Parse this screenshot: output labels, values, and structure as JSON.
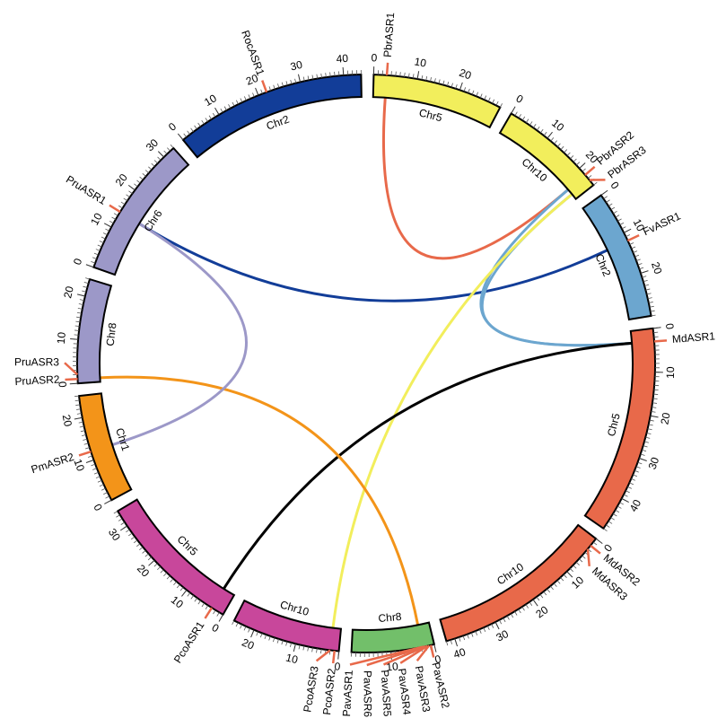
{
  "chromosomes": [
    {
      "label": "Chr5",
      "color": "#f2ee5c",
      "length": 30,
      "ticks": [
        0,
        10,
        20
      ]
    },
    {
      "label": "Chr10",
      "color": "#f2ee5c",
      "length": 25,
      "ticks": [
        0,
        10,
        20
      ]
    },
    {
      "label": "Chr2",
      "color": "#6ca6cf",
      "length": 30,
      "ticks": [
        0,
        10,
        20
      ]
    },
    {
      "label": "Chr5",
      "color": "#e8694a",
      "length": 48,
      "ticks": [
        0,
        10,
        20,
        30,
        40
      ]
    },
    {
      "label": "Chr10",
      "color": "#e8694a",
      "length": 42,
      "ticks": [
        0,
        10,
        20,
        30,
        40
      ]
    },
    {
      "label": "Chr8",
      "color": "#72bf6a",
      "length": 19,
      "ticks": [
        0,
        10
      ]
    },
    {
      "label": "Chr10",
      "color": "#c8479b",
      "length": 25,
      "ticks": [
        0,
        10,
        20
      ]
    },
    {
      "label": "Chr5",
      "color": "#c8479b",
      "length": 34,
      "ticks": [
        0,
        10,
        20,
        30
      ]
    },
    {
      "label": "Chr1",
      "color": "#f39419",
      "length": 25,
      "ticks": [
        0,
        10,
        20
      ]
    },
    {
      "label": "Chr8",
      "color": "#9c98c8",
      "length": 24,
      "ticks": [
        0,
        10,
        20
      ]
    },
    {
      "label": "Chr6",
      "color": "#9c98c8",
      "length": 33,
      "ticks": [
        0,
        10,
        20,
        30
      ]
    },
    {
      "label": "Chr2",
      "color": "#123d98",
      "length": 44,
      "ticks": [
        0,
        10,
        20,
        30,
        40
      ]
    }
  ],
  "genes": [
    {
      "label": "PbrASR1",
      "chromosome": 0,
      "position": 3
    },
    {
      "label": "PbrASR2",
      "chromosome": 1,
      "position": 22
    },
    {
      "label": "PbrASR3",
      "chromosome": 1,
      "position": 23.5
    },
    {
      "label": "FvASR1",
      "chromosome": 2,
      "position": 12
    },
    {
      "label": "MdASR1",
      "chromosome": 3,
      "position": 3
    },
    {
      "label": "MdASR2",
      "chromosome": 4,
      "position": 2
    },
    {
      "label": "MdASR3",
      "chromosome": 4,
      "position": 3
    },
    {
      "label": "PavASR2",
      "chromosome": 5,
      "position": 0.8
    },
    {
      "label": "PavASR3",
      "chromosome": 5,
      "position": 1.2
    },
    {
      "label": "PavASR4",
      "chromosome": 5,
      "position": 1.6
    },
    {
      "label": "PavASR5",
      "chromosome": 5,
      "position": 2.0
    },
    {
      "label": "PavASR6",
      "chromosome": 5,
      "position": 2.4
    },
    {
      "label": "PavASR1",
      "chromosome": 5,
      "position": 2.8
    },
    {
      "label": "PcoASR2",
      "chromosome": 6,
      "position": 1
    },
    {
      "label": "PcoASR3",
      "chromosome": 6,
      "position": 2
    },
    {
      "label": "PcoASR1",
      "chromosome": 7,
      "position": 3
    },
    {
      "label": "PmASR2",
      "chromosome": 8,
      "position": 12
    },
    {
      "label": "PruASR2",
      "chromosome": 9,
      "position": 1
    },
    {
      "label": "PruASR3",
      "chromosome": 9,
      "position": 2
    },
    {
      "label": "PruASR1",
      "chromosome": 10,
      "position": 14
    },
    {
      "label": "RocASR1",
      "chromosome": 11,
      "position": 22
    }
  ],
  "links": [
    {
      "from": 19,
      "to": 3,
      "color": "#123d98"
    },
    {
      "from": 0,
      "to": 1,
      "color": "#e8694a"
    },
    {
      "from": 1,
      "to": 4,
      "color": "#6ca6cf"
    },
    {
      "from": 2,
      "to": 4,
      "color": "#6ca6cf"
    },
    {
      "from": 2,
      "to": 14,
      "color": "#f2ee5c"
    },
    {
      "from": 4,
      "to": 15,
      "color": "#000000"
    },
    {
      "from": 17,
      "to": 12,
      "color": "#f39419"
    },
    {
      "from": 19,
      "to": 16,
      "color": "#9c98c8"
    }
  ]
}
